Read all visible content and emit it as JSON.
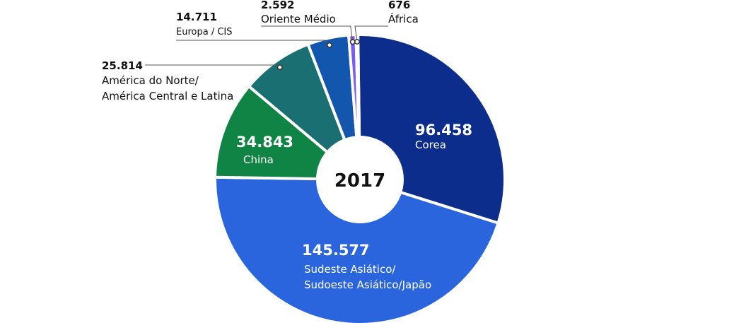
{
  "chart_data": {
    "type": "pie",
    "title": "",
    "center_label": "2017",
    "categories": [
      "Corea",
      "Sudeste Asiático/ Sudoeste Asiático/Japão",
      "China",
      "América do Norte/ América Central e Latina",
      "Europa / CIS",
      "Oriente Médio",
      "África"
    ],
    "values": [
      96458,
      145577,
      34843,
      25814,
      14711,
      2592,
      676
    ],
    "slices": [
      {
        "key": "corea",
        "value": 96458,
        "value_label": "96.458",
        "label_lines": [
          "Corea"
        ],
        "color": "#0d2d8c"
      },
      {
        "key": "sudeste",
        "value": 145577,
        "value_label": "145.577",
        "label_lines": [
          "Sudeste Asiático/",
          "Sudoeste Asiático/Japão"
        ],
        "color": "#2a65de"
      },
      {
        "key": "china",
        "value": 34843,
        "value_label": "34.843",
        "label_lines": [
          "China"
        ],
        "color": "#0f8445"
      },
      {
        "key": "america",
        "value": 25814,
        "value_label": "25.814",
        "label_lines": [
          "América do Norte/",
          "América Central e Latina"
        ],
        "color": "#1a6f73"
      },
      {
        "key": "europa",
        "value": 14711,
        "value_label": "14.711",
        "label_lines": [
          "Europa / CIS"
        ],
        "color": "#1356ad"
      },
      {
        "key": "oriente",
        "value": 2592,
        "value_label": "2.592",
        "label_lines": [
          "Oriente Médio"
        ],
        "color": "#7a5cf0"
      },
      {
        "key": "africa",
        "value": 676,
        "value_label": "676",
        "label_lines": [
          "África"
        ],
        "color": "#3d86b5"
      }
    ]
  }
}
